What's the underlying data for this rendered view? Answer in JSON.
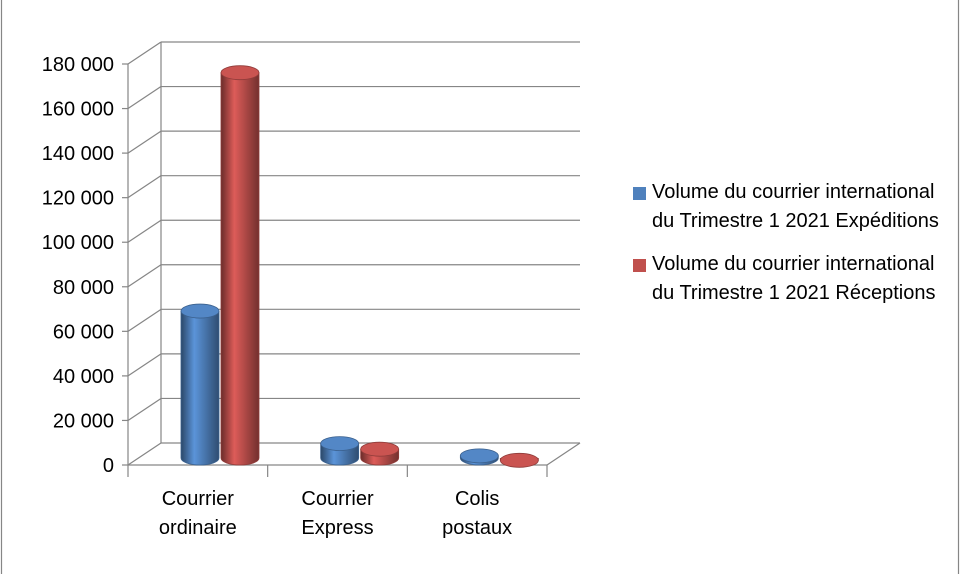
{
  "chart_data": {
    "type": "bar",
    "categories": [
      [
        "Courrier",
        "ordinaire"
      ],
      [
        "Courrier",
        "Express"
      ],
      [
        "Colis",
        "postaux"
      ]
    ],
    "series": [
      {
        "name": "Volume du courrier international du Trimestre 1 2021 Expéditions",
        "values": [
          70000,
          10500,
          5000
        ],
        "color": "#4f81bd"
      },
      {
        "name": "Volume du courrier international du Trimestre 1 2021 Réceptions",
        "values": [
          177000,
          8000,
          3000
        ],
        "color": "#c0504d"
      }
    ],
    "yticks": [
      "0",
      "20 000",
      "40 000",
      "60 000",
      "80 000",
      "100 000",
      "120 000",
      "140 000",
      "160 000",
      "180 000"
    ],
    "ylim": [
      0,
      180000
    ],
    "grid": true,
    "legend_position": "right",
    "style": "3d-cylinder"
  }
}
